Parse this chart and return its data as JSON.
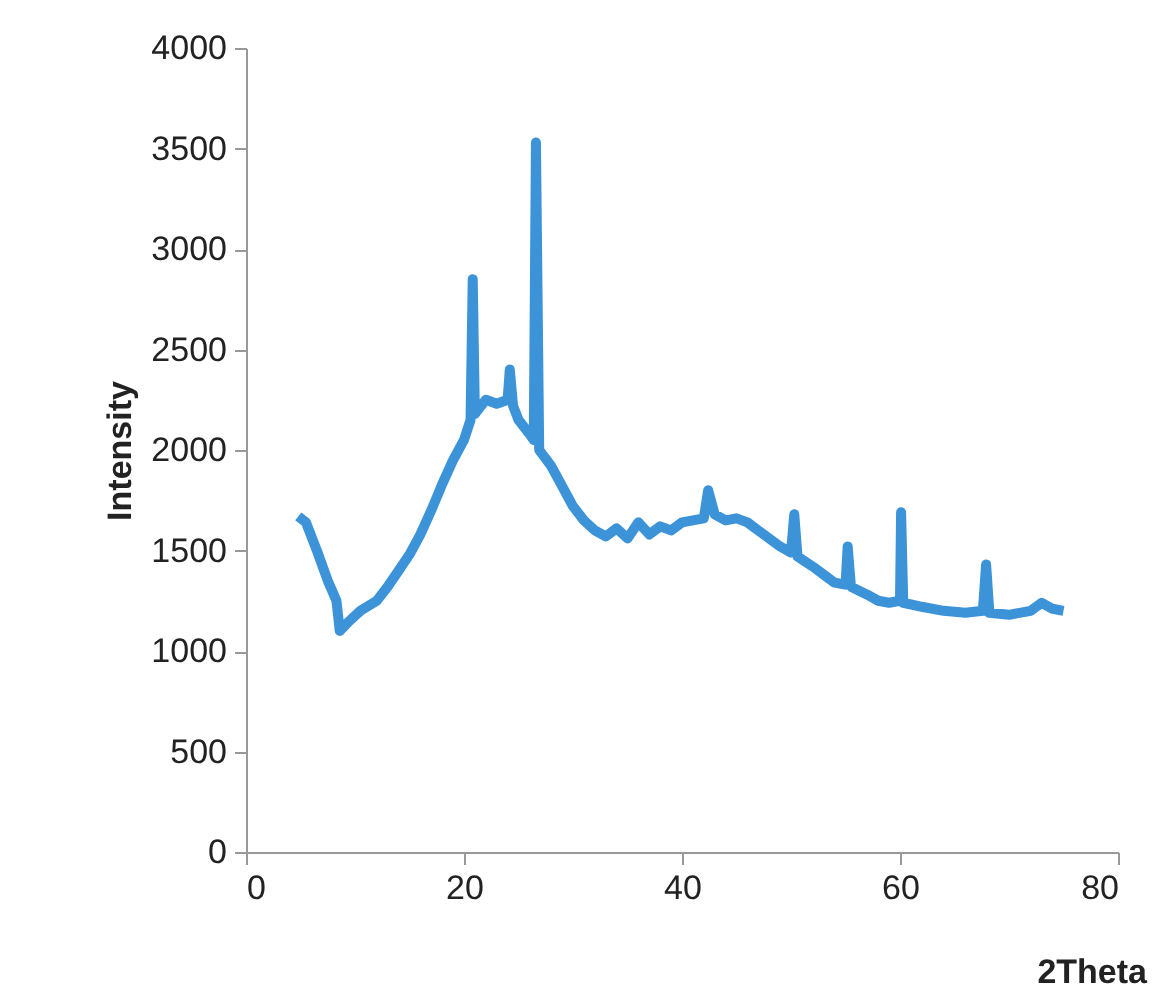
{
  "chart_data": {
    "type": "line",
    "xlabel": "2Theta",
    "ylabel": "Intensity",
    "xlim": [
      0,
      80
    ],
    "xticks": [
      0,
      20,
      40,
      60,
      80
    ],
    "ylim": [
      0,
      4000
    ],
    "yticks": [
      0,
      500,
      1000,
      1500,
      2000,
      2500,
      3000,
      3500,
      4000
    ],
    "grid": false,
    "marker": "none",
    "line_style": "solid",
    "x": [
      4.8,
      5.5,
      6.5,
      7.5,
      8.3,
      8.6,
      9.5,
      10.5,
      12,
      13,
      14,
      15,
      16,
      17,
      18,
      19,
      20,
      20.6,
      20.8,
      21,
      22,
      23,
      24,
      24.2,
      24.5,
      25,
      26,
      26.4,
      26.6,
      26.9,
      28,
      29,
      30,
      31,
      32,
      33,
      34,
      35,
      36,
      37,
      38,
      39,
      40,
      41,
      42,
      42.4,
      43,
      44,
      45,
      46,
      47,
      48,
      49,
      50,
      50.3,
      50.6,
      52,
      53,
      54,
      55,
      55.2,
      55.5,
      57,
      58,
      59,
      60,
      60.1,
      60.3,
      62,
      64,
      66,
      67.6,
      67.9,
      68.2,
      70,
      72,
      73,
      74,
      75
    ],
    "series": [
      {
        "color": "#3d93d8",
        "values": [
          1670,
          1640,
          1500,
          1350,
          1250,
          1100,
          1150,
          1200,
          1250,
          1320,
          1400,
          1480,
          1580,
          1700,
          1830,
          1950,
          2050,
          2150,
          2850,
          2180,
          2250,
          2230,
          2250,
          2400,
          2220,
          2150,
          2080,
          2050,
          3530,
          2000,
          1920,
          1820,
          1720,
          1650,
          1600,
          1570,
          1610,
          1560,
          1640,
          1580,
          1620,
          1600,
          1640,
          1650,
          1660,
          1800,
          1680,
          1650,
          1660,
          1640,
          1600,
          1560,
          1520,
          1490,
          1680,
          1470,
          1420,
          1380,
          1340,
          1330,
          1520,
          1320,
          1280,
          1250,
          1240,
          1250,
          1690,
          1240,
          1220,
          1200,
          1190,
          1200,
          1430,
          1190,
          1180,
          1200,
          1240,
          1210,
          1200
        ]
      }
    ]
  }
}
